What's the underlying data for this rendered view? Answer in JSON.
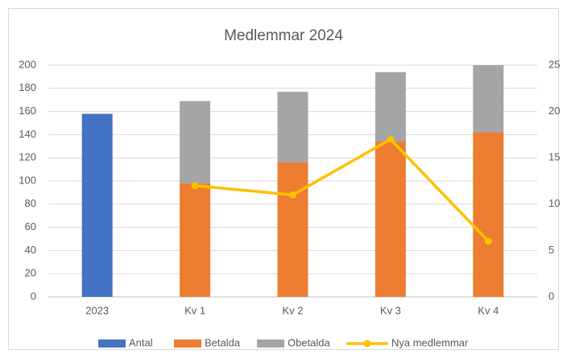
{
  "chart_data": {
    "type": "bar",
    "title": "Medlemmar 2024",
    "stacked": true,
    "grid": true,
    "legend": "bottom",
    "categories": [
      "2023",
      "Kv 1",
      "Kv 2",
      "Kv 3",
      "Kv 4"
    ],
    "series": [
      {
        "name": "Antal",
        "color": "#4472c4",
        "values": [
          158,
          null,
          null,
          null,
          null
        ]
      },
      {
        "name": "Betalda",
        "color": "#ed7d31",
        "values": [
          null,
          98,
          116,
          134,
          142
        ]
      },
      {
        "name": "Obetalda",
        "color": "#a5a5a5",
        "values": [
          null,
          71,
          61,
          60,
          58
        ]
      },
      {
        "name": "Nya medlemmar",
        "color": "#ffc000",
        "type": "line",
        "axis": "y2",
        "values": [
          null,
          12,
          11,
          17,
          6
        ]
      }
    ],
    "ylim": [
      0,
      200
    ],
    "yticks": [
      0,
      20,
      40,
      60,
      80,
      100,
      120,
      140,
      160,
      180,
      200
    ],
    "y2lim": [
      0,
      25
    ],
    "y2ticks": [
      0,
      5,
      10,
      15,
      20,
      25
    ]
  }
}
